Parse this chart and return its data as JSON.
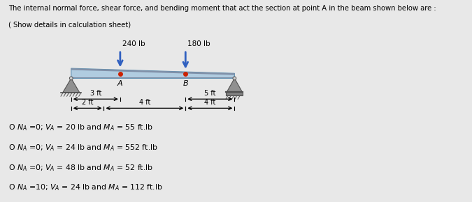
{
  "title_line1": "The internal normal force, shear force, and bending moment that act the section at point A in the beam shown below are :",
  "title_line2": "( Show details in calculation sheet)",
  "load1_label": "240 lb",
  "load2_label": "180 lb",
  "bg_color": "#e8e8e8",
  "beam_color_top": "#b8d8f0",
  "beam_color_bot": "#90b8d8",
  "support_color": "#808080",
  "arrow_color": "#3060c0",
  "text_color": "#000000",
  "option1": "O NA =0; VA = 20 lb and MA = 55 ft.lb",
  "option2": "O NA =0; VA = 24 lb and MA = 552 ft.lb",
  "option3": "O NA =0; VA = 48 lb and MA = 52 ft.lb",
  "option4": "O NA =10; VA = 24 lb and MA = 112 ft.lb"
}
